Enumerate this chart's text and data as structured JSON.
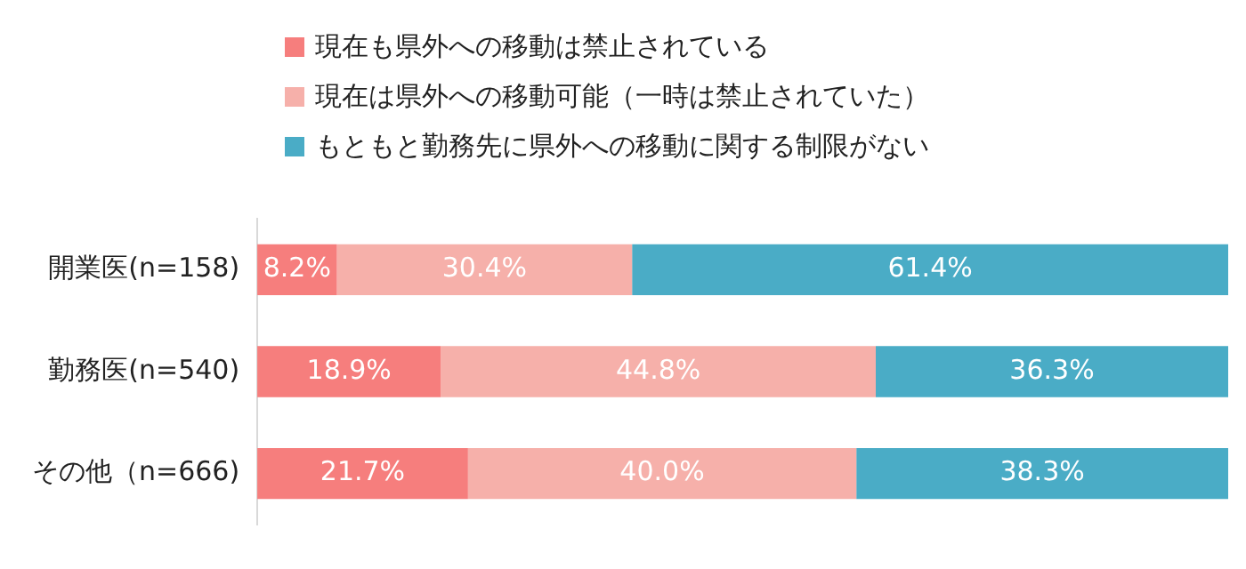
{
  "chart_data": {
    "type": "bar",
    "orientation": "horizontal",
    "stacked": true,
    "legend": "top",
    "grid": false,
    "tick_labels": "y",
    "xlim": [
      0,
      100
    ],
    "categories": [
      "開業医(n=158)",
      "勤務医(n=540)",
      "その他（n=666)"
    ],
    "series": [
      {
        "name": "現在も県外への移動は禁止されている",
        "color": "#f67e7d",
        "values": [
          8.2,
          18.9,
          21.7
        ],
        "value_labels": [
          "8.2%",
          "18.9%",
          "21.7%"
        ]
      },
      {
        "name": "現在は県外への移動可能（一時は禁止されていた）",
        "color": "#f6b0aa",
        "values": [
          30.4,
          44.8,
          40.0
        ],
        "value_labels": [
          "30.4%",
          "44.8%",
          "40.0%"
        ]
      },
      {
        "name": "もともと勤務先に県外への移動に関する制限がない",
        "color": "#4aacc6",
        "values": [
          61.4,
          36.3,
          38.3
        ],
        "value_labels": [
          "61.4%",
          "36.3%",
          "38.3%"
        ]
      }
    ]
  }
}
